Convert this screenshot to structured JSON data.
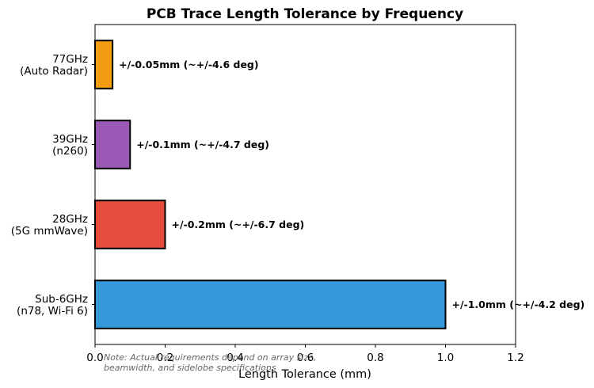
{
  "chart_data": {
    "type": "bar",
    "orientation": "horizontal",
    "title": "PCB Trace Length Tolerance by Frequency",
    "xlabel": "Length Tolerance (mm)",
    "ylabel": "",
    "xlim": [
      0,
      1.2
    ],
    "xticks": [
      "0.0",
      "0.2",
      "0.4",
      "0.6",
      "0.8",
      "1.0",
      "1.2"
    ],
    "grid": false,
    "categories": [
      [
        "Sub-6GHz",
        "(n78, Wi-Fi 6)"
      ],
      [
        "28GHz",
        "(5G mmWave)"
      ],
      [
        "39GHz",
        "(n260)"
      ],
      [
        "77GHz",
        "(Auto Radar)"
      ]
    ],
    "values": [
      1.0,
      0.2,
      0.1,
      0.05
    ],
    "colors": [
      "#3498db",
      "#e74c3c",
      "#9b59b6",
      "#f39c12"
    ],
    "bar_labels": [
      "+/-1.0mm (~+/-4.2 deg)",
      "+/-0.2mm (~+/-6.7 deg)",
      "+/-0.1mm (~+/-4.7 deg)",
      "+/-0.05mm (~+/-4.6 deg)"
    ],
    "annotation": [
      "Note: Actual requirements depend on array size,",
      "beamwidth, and sidelobe specifications"
    ]
  }
}
